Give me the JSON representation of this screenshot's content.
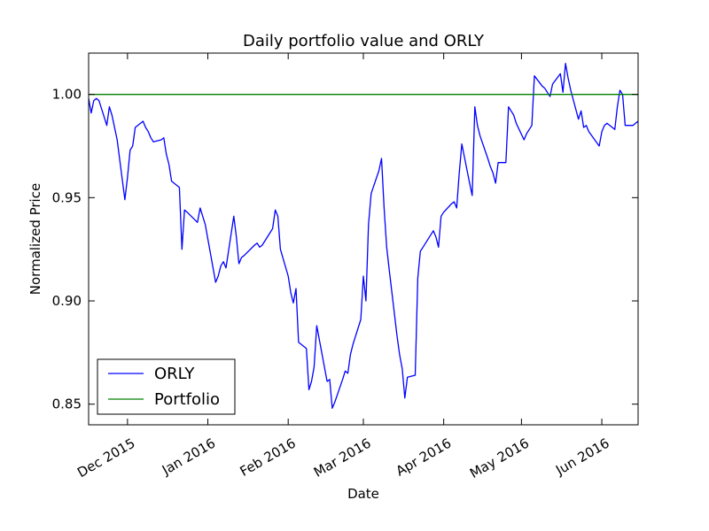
{
  "chart_data": {
    "type": "line",
    "title": "Daily portfolio value and ORLY",
    "xlabel": "Date",
    "ylabel": "Normalized Price",
    "xlim": [
      "2015-11-16",
      "2016-06-15"
    ],
    "ylim": [
      0.84,
      1.02
    ],
    "yticks": [
      {
        "value": 0.85,
        "label": "0.85"
      },
      {
        "value": 0.9,
        "label": "0.90"
      },
      {
        "value": 0.95,
        "label": "0.95"
      },
      {
        "value": 1.0,
        "label": "1.00"
      }
    ],
    "xticks": [
      {
        "date": "2015-12-01",
        "label": "Dec 2015"
      },
      {
        "date": "2016-01-01",
        "label": "Jan 2016"
      },
      {
        "date": "2016-02-01",
        "label": "Feb 2016"
      },
      {
        "date": "2016-03-01",
        "label": "Mar 2016"
      },
      {
        "date": "2016-04-01",
        "label": "Apr 2016"
      },
      {
        "date": "2016-05-01",
        "label": "May 2016"
      },
      {
        "date": "2016-06-01",
        "label": "Jun 2016"
      }
    ],
    "grid": false,
    "legend_position": "lower-left",
    "series": [
      {
        "name": "ORLY",
        "color": "#0000ff",
        "points": [
          [
            "2015-11-16",
            0.998
          ],
          [
            "2015-11-17",
            0.991
          ],
          [
            "2015-11-18",
            0.997
          ],
          [
            "2015-11-19",
            0.998
          ],
          [
            "2015-11-20",
            0.997
          ],
          [
            "2015-11-23",
            0.985
          ],
          [
            "2015-11-24",
            0.994
          ],
          [
            "2015-11-25",
            0.99
          ],
          [
            "2015-11-27",
            0.978
          ],
          [
            "2015-11-30",
            0.949
          ],
          [
            "2015-12-01",
            0.96
          ],
          [
            "2015-12-02",
            0.973
          ],
          [
            "2015-12-03",
            0.975
          ],
          [
            "2015-12-04",
            0.984
          ],
          [
            "2015-12-07",
            0.987
          ],
          [
            "2015-12-08",
            0.984
          ],
          [
            "2015-12-09",
            0.982
          ],
          [
            "2015-12-10",
            0.979
          ],
          [
            "2015-12-11",
            0.977
          ],
          [
            "2015-12-14",
            0.978
          ],
          [
            "2015-12-15",
            0.979
          ],
          [
            "2015-12-16",
            0.971
          ],
          [
            "2015-12-17",
            0.966
          ],
          [
            "2015-12-18",
            0.958
          ],
          [
            "2015-12-21",
            0.955
          ],
          [
            "2015-12-22",
            0.925
          ],
          [
            "2015-12-23",
            0.944
          ],
          [
            "2015-12-24",
            0.943
          ],
          [
            "2015-12-28",
            0.938
          ],
          [
            "2015-12-29",
            0.945
          ],
          [
            "2015-12-30",
            0.941
          ],
          [
            "2015-12-31",
            0.937
          ],
          [
            "2016-01-04",
            0.909
          ],
          [
            "2016-01-05",
            0.912
          ],
          [
            "2016-01-06",
            0.917
          ],
          [
            "2016-01-07",
            0.919
          ],
          [
            "2016-01-08",
            0.916
          ],
          [
            "2016-01-11",
            0.941
          ],
          [
            "2016-01-12",
            0.931
          ],
          [
            "2016-01-13",
            0.918
          ],
          [
            "2016-01-14",
            0.921
          ],
          [
            "2016-01-15",
            0.922
          ],
          [
            "2016-01-19",
            0.927
          ],
          [
            "2016-01-20",
            0.928
          ],
          [
            "2016-01-21",
            0.926
          ],
          [
            "2016-01-22",
            0.927
          ],
          [
            "2016-01-25",
            0.933
          ],
          [
            "2016-01-26",
            0.935
          ],
          [
            "2016-01-27",
            0.944
          ],
          [
            "2016-01-28",
            0.941
          ],
          [
            "2016-01-29",
            0.925
          ],
          [
            "2016-02-01",
            0.912
          ],
          [
            "2016-02-02",
            0.904
          ],
          [
            "2016-02-03",
            0.899
          ],
          [
            "2016-02-04",
            0.906
          ],
          [
            "2016-02-05",
            0.88
          ],
          [
            "2016-02-08",
            0.877
          ],
          [
            "2016-02-09",
            0.857
          ],
          [
            "2016-02-10",
            0.861
          ],
          [
            "2016-02-11",
            0.868
          ],
          [
            "2016-02-12",
            0.888
          ],
          [
            "2016-02-16",
            0.861
          ],
          [
            "2016-02-17",
            0.862
          ],
          [
            "2016-02-18",
            0.848
          ],
          [
            "2016-02-19",
            0.851
          ],
          [
            "2016-02-22",
            0.862
          ],
          [
            "2016-02-23",
            0.866
          ],
          [
            "2016-02-24",
            0.865
          ],
          [
            "2016-02-25",
            0.874
          ],
          [
            "2016-02-26",
            0.879
          ],
          [
            "2016-02-29",
            0.891
          ],
          [
            "2016-03-01",
            0.912
          ],
          [
            "2016-03-02",
            0.9
          ],
          [
            "2016-03-03",
            0.937
          ],
          [
            "2016-03-04",
            0.952
          ],
          [
            "2016-03-07",
            0.963
          ],
          [
            "2016-03-08",
            0.969
          ],
          [
            "2016-03-09",
            0.945
          ],
          [
            "2016-03-10",
            0.926
          ],
          [
            "2016-03-11",
            0.915
          ],
          [
            "2016-03-14",
            0.883
          ],
          [
            "2016-03-15",
            0.874
          ],
          [
            "2016-03-16",
            0.867
          ],
          [
            "2016-03-17",
            0.853
          ],
          [
            "2016-03-18",
            0.863
          ],
          [
            "2016-03-21",
            0.864
          ],
          [
            "2016-03-22",
            0.911
          ],
          [
            "2016-03-23",
            0.924
          ],
          [
            "2016-03-24",
            0.926
          ],
          [
            "2016-03-28",
            0.934
          ],
          [
            "2016-03-29",
            0.931
          ],
          [
            "2016-03-30",
            0.926
          ],
          [
            "2016-03-31",
            0.941
          ],
          [
            "2016-04-01",
            0.943
          ],
          [
            "2016-04-04",
            0.947
          ],
          [
            "2016-04-05",
            0.948
          ],
          [
            "2016-04-06",
            0.945
          ],
          [
            "2016-04-07",
            0.962
          ],
          [
            "2016-04-08",
            0.976
          ],
          [
            "2016-04-11",
            0.957
          ],
          [
            "2016-04-12",
            0.951
          ],
          [
            "2016-04-13",
            0.994
          ],
          [
            "2016-04-14",
            0.985
          ],
          [
            "2016-04-15",
            0.98
          ],
          [
            "2016-04-18",
            0.969
          ],
          [
            "2016-04-19",
            0.965
          ],
          [
            "2016-04-20",
            0.962
          ],
          [
            "2016-04-21",
            0.957
          ],
          [
            "2016-04-22",
            0.967
          ],
          [
            "2016-04-25",
            0.967
          ],
          [
            "2016-04-26",
            0.994
          ],
          [
            "2016-04-27",
            0.992
          ],
          [
            "2016-04-28",
            0.99
          ],
          [
            "2016-04-29",
            0.986
          ],
          [
            "2016-05-02",
            0.978
          ],
          [
            "2016-05-03",
            0.981
          ],
          [
            "2016-05-04",
            0.983
          ],
          [
            "2016-05-05",
            0.985
          ],
          [
            "2016-05-06",
            1.009
          ],
          [
            "2016-05-09",
            1.004
          ],
          [
            "2016-05-10",
            1.003
          ],
          [
            "2016-05-11",
            1.001
          ],
          [
            "2016-05-12",
            0.999
          ],
          [
            "2016-05-13",
            1.005
          ],
          [
            "2016-05-16",
            1.01
          ],
          [
            "2016-05-17",
            1.001
          ],
          [
            "2016-05-18",
            1.015
          ],
          [
            "2016-05-19",
            1.008
          ],
          [
            "2016-05-20",
            1.002
          ],
          [
            "2016-05-23",
            0.988
          ],
          [
            "2016-05-24",
            0.992
          ],
          [
            "2016-05-25",
            0.984
          ],
          [
            "2016-05-26",
            0.985
          ],
          [
            "2016-05-27",
            0.982
          ],
          [
            "2016-05-31",
            0.975
          ],
          [
            "2016-06-01",
            0.982
          ],
          [
            "2016-06-02",
            0.985
          ],
          [
            "2016-06-03",
            0.986
          ],
          [
            "2016-06-06",
            0.983
          ],
          [
            "2016-06-07",
            0.994
          ],
          [
            "2016-06-08",
            1.002
          ],
          [
            "2016-06-09",
            1.0
          ],
          [
            "2016-06-10",
            0.985
          ],
          [
            "2016-06-13",
            0.985
          ],
          [
            "2016-06-14",
            0.986
          ],
          [
            "2016-06-15",
            0.987
          ]
        ]
      },
      {
        "name": "Portfolio",
        "color": "#008000",
        "points": [
          [
            "2015-11-16",
            1.0
          ],
          [
            "2016-06-15",
            1.0
          ]
        ]
      }
    ]
  }
}
